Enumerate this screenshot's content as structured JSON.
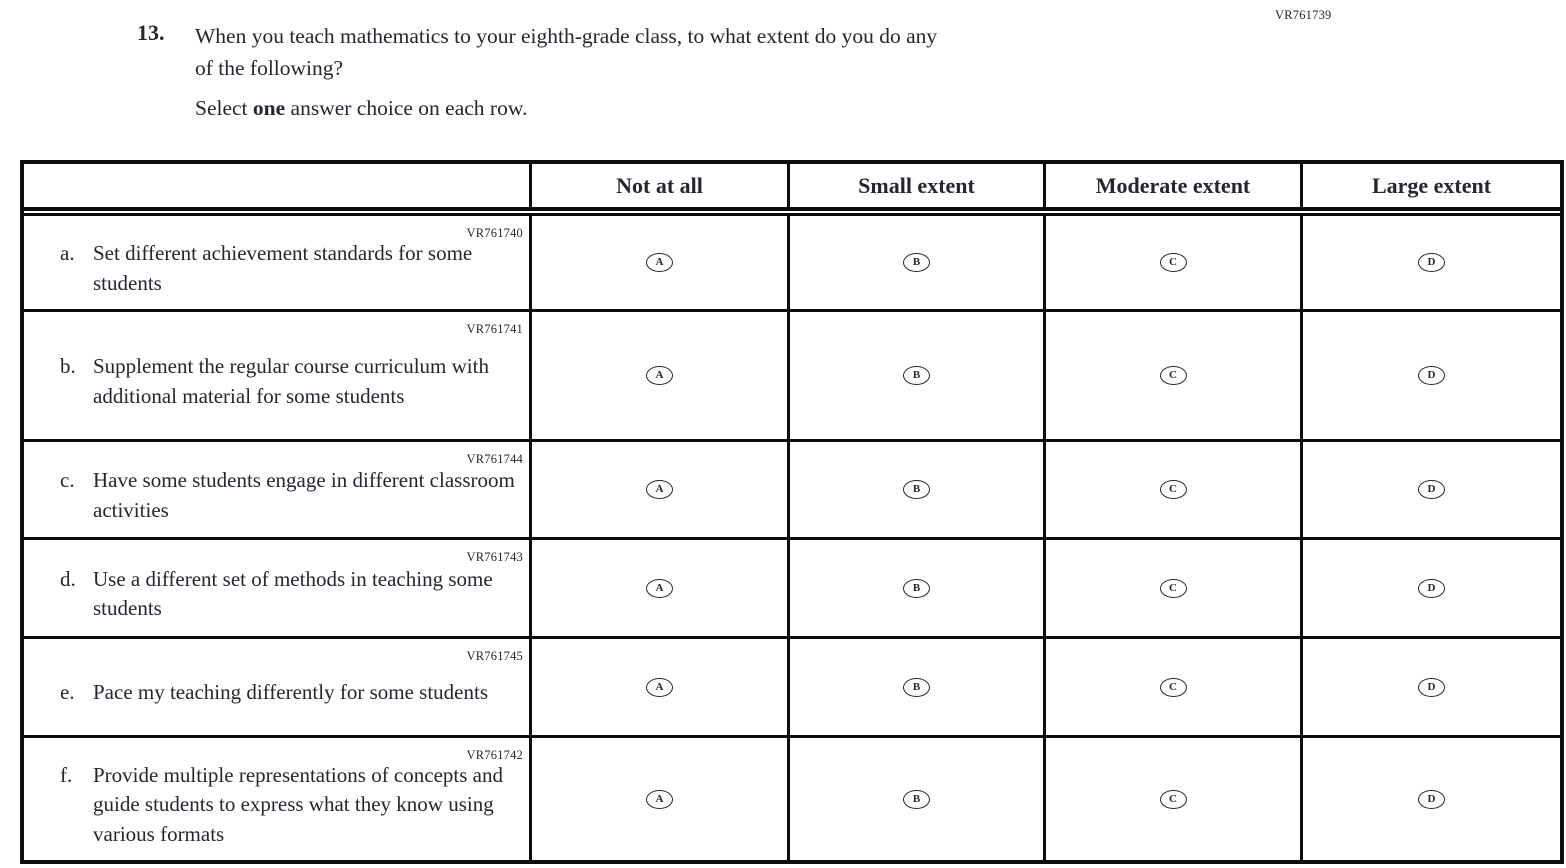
{
  "page_code": "VR761739",
  "question": {
    "number": "13.",
    "line1": "When you teach mathematics to your eighth-grade class, to what extent do you do any",
    "line2": "of the following?",
    "instruction_prefix": "Select ",
    "instruction_bold": "one",
    "instruction_suffix": " answer choice on each row."
  },
  "table": {
    "columns": [
      "Not at all",
      "Small extent",
      "Moderate extent",
      "Large extent"
    ],
    "options": [
      "A",
      "B",
      "C",
      "D"
    ],
    "rows": [
      {
        "letter": "a.",
        "code": "VR761740",
        "text": "Set different achievement standards for some students"
      },
      {
        "letter": "b.",
        "code": "VR761741",
        "text": "Supplement the regular course curriculum with additional material for some students"
      },
      {
        "letter": "c.",
        "code": "VR761744",
        "text": "Have some students engage in different classroom activities"
      },
      {
        "letter": "d.",
        "code": "VR761743",
        "text": "Use a different set of methods in teaching some students"
      },
      {
        "letter": "e.",
        "code": "VR761745",
        "text": "Pace my teaching differently for some students"
      },
      {
        "letter": "f.",
        "code": "VR761742",
        "text": "Provide multiple representations of concepts and guide students to express what they know using various formats"
      }
    ]
  },
  "colors": {
    "ink": "#26262e",
    "border": "#0d0d0d"
  }
}
